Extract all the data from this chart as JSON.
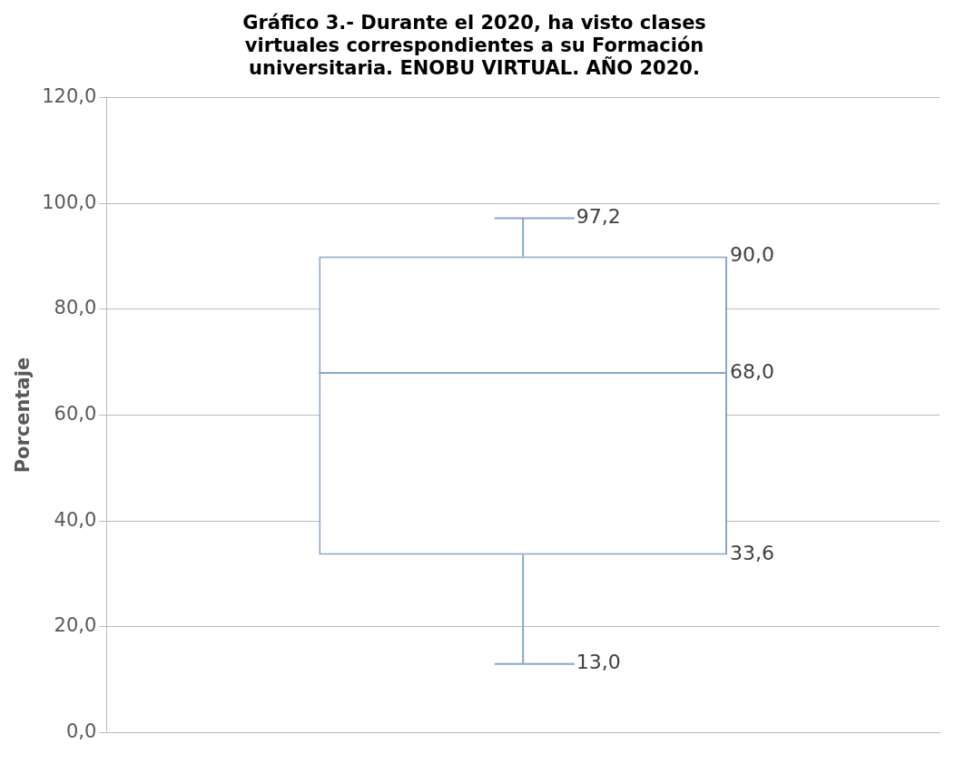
{
  "chart_data": {
    "type": "box",
    "title": "Gráfico 3.- Durante el 2020, ha visto clases virtuales correspondientes a su Formación universitaria. ENOBU VIRTUAL. AÑO 2020.",
    "ylabel": "Porcentaje",
    "categories": [
      null
    ],
    "boxes": [
      {
        "low": 13.0,
        "q1": 33.6,
        "median": 68.0,
        "q3": 90.0,
        "high": 97.2
      }
    ],
    "color": "#8aa6c8",
    "ylim": [
      0,
      120
    ],
    "yticks": [
      {
        "value": 0,
        "label": "0,0"
      },
      {
        "value": 20,
        "label": "20,0"
      },
      {
        "value": 40,
        "label": "40,0"
      },
      {
        "value": 60,
        "label": "60,0"
      },
      {
        "value": 80,
        "label": "80,0"
      },
      {
        "value": 100,
        "label": "100,0"
      },
      {
        "value": 120,
        "label": "120,0"
      }
    ],
    "value_labels": [
      [
        "13,0",
        "33,6",
        "68,0",
        "90,0",
        "97,2"
      ]
    ],
    "grid": "y",
    "legend": false
  }
}
